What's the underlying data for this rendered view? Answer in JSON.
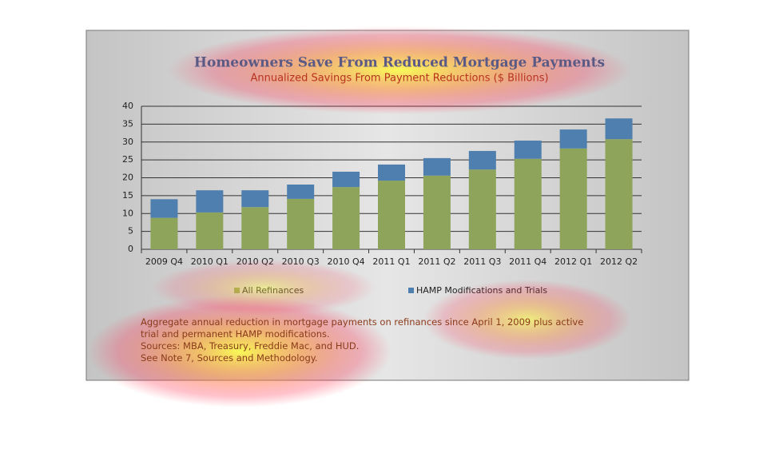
{
  "chart_data": {
    "type": "stacked_bar",
    "title": "Homeowners Save From Reduced Mortgage Payments",
    "subtitle": "Annualized Savings From Payment Reductions ($ Billions)",
    "categories": [
      "2009 Q4",
      "2010 Q1",
      "2010 Q2",
      "2010 Q3",
      "2010 Q4",
      "2011 Q1",
      "2011 Q2",
      "2011 Q3",
      "2011 Q4",
      "2012 Q1",
      "2012 Q2"
    ],
    "series": [
      {
        "name": "All Refinances",
        "color": "#8ea45a",
        "values": [
          8.8,
          10.3,
          11.8,
          14.1,
          17.4,
          19.2,
          20.6,
          22.3,
          25.3,
          28.2,
          30.8
        ]
      },
      {
        "name": "HAMP Modifications and Trials",
        "color": "#4f7fae",
        "values": [
          5.2,
          6.2,
          4.7,
          4.0,
          4.3,
          4.5,
          4.9,
          5.2,
          5.1,
          5.3,
          5.8
        ]
      }
    ],
    "ylim": [
      0,
      40
    ],
    "yticks": [
      0,
      5,
      10,
      15,
      20,
      25,
      30,
      35,
      40
    ],
    "grid": true,
    "notes": [
      "Aggregate annual reduction in mortgage payments on refinances since April 1, 2009 plus active trial and permanent HAMP modifications.",
      "Sources:  MBA, Treasury, Freddie Mac, and HUD.",
      "See Note 7, Sources and Methodology."
    ]
  }
}
